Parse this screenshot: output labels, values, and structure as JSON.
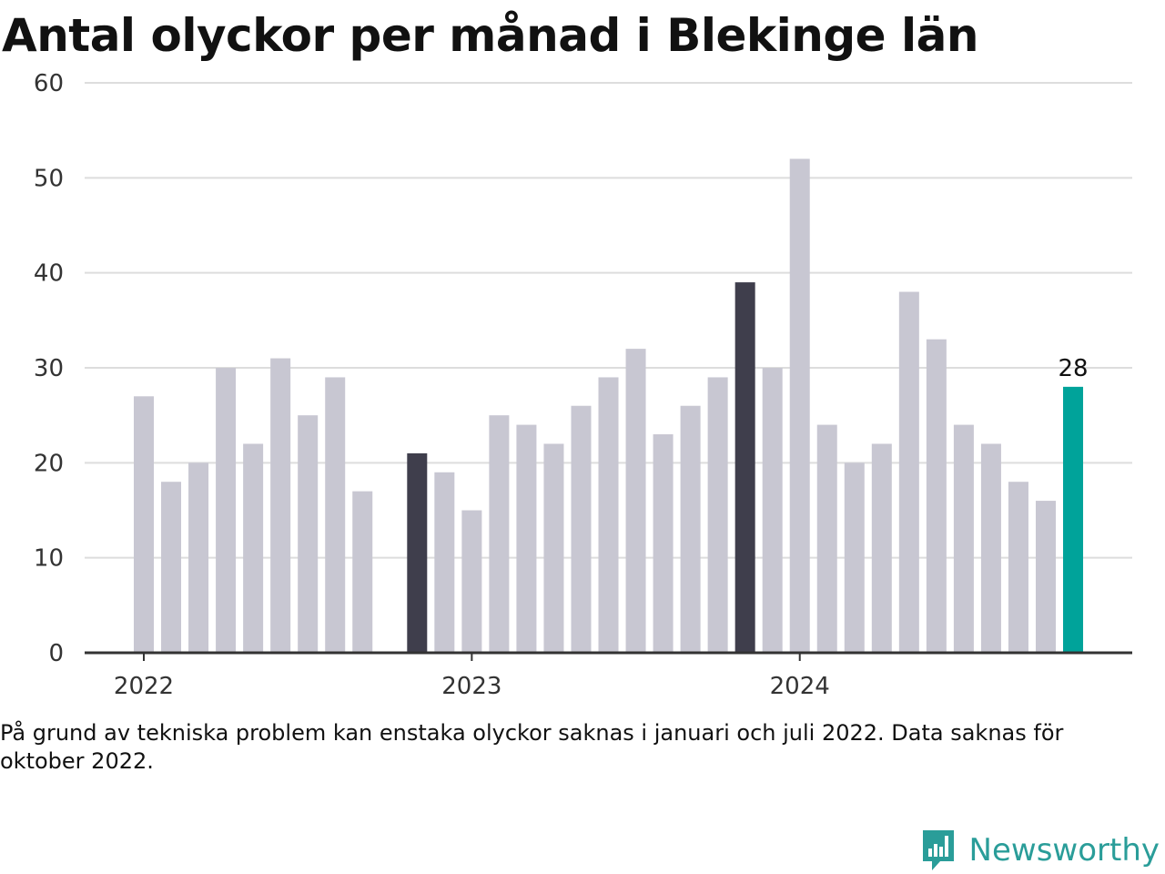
{
  "title": "Antal olyckor per månad i Blekinge län",
  "note": "På grund av tekniska problem kan enstaka olyckor saknas i januari och juli 2022. Data saknas för oktober 2022.",
  "brand": {
    "name": "Newsworthy",
    "icon": "newsworthy-logo-icon"
  },
  "colors": {
    "bar": "#c8c7d2",
    "highlight": "#3f3e4c",
    "latest": "#00a39a",
    "grid": "#dddddd",
    "axis": "#333333",
    "brand": "#2a9d99"
  },
  "chart_data": {
    "type": "bar",
    "title": "Antal olyckor per månad i Blekinge län",
    "xlabel": "",
    "ylabel": "",
    "ylim": [
      0,
      60
    ],
    "yticks": [
      0,
      10,
      20,
      30,
      40,
      50,
      60
    ],
    "x_tick_labels": [
      {
        "label": "2022",
        "month": "2022-01"
      },
      {
        "label": "2023",
        "month": "2023-01"
      },
      {
        "label": "2024",
        "month": "2024-01"
      }
    ],
    "grid": true,
    "months": [
      {
        "month": "2022-01",
        "value": 27
      },
      {
        "month": "2022-02",
        "value": 18
      },
      {
        "month": "2022-03",
        "value": 20
      },
      {
        "month": "2022-04",
        "value": 30
      },
      {
        "month": "2022-05",
        "value": 22
      },
      {
        "month": "2022-06",
        "value": 31
      },
      {
        "month": "2022-07",
        "value": 25
      },
      {
        "month": "2022-08",
        "value": 29
      },
      {
        "month": "2022-09",
        "value": 17
      },
      {
        "month": "2022-10",
        "value": null
      },
      {
        "month": "2022-11",
        "value": 21,
        "highlight": true
      },
      {
        "month": "2022-12",
        "value": 19
      },
      {
        "month": "2023-01",
        "value": 15
      },
      {
        "month": "2023-02",
        "value": 25
      },
      {
        "month": "2023-03",
        "value": 24
      },
      {
        "month": "2023-04",
        "value": 22
      },
      {
        "month": "2023-05",
        "value": 26
      },
      {
        "month": "2023-06",
        "value": 29
      },
      {
        "month": "2023-07",
        "value": 32
      },
      {
        "month": "2023-08",
        "value": 23
      },
      {
        "month": "2023-09",
        "value": 26
      },
      {
        "month": "2023-10",
        "value": 29
      },
      {
        "month": "2023-11",
        "value": 39,
        "highlight": true
      },
      {
        "month": "2023-12",
        "value": 30
      },
      {
        "month": "2024-01",
        "value": 52
      },
      {
        "month": "2024-02",
        "value": 24
      },
      {
        "month": "2024-03",
        "value": 20
      },
      {
        "month": "2024-04",
        "value": 22
      },
      {
        "month": "2024-05",
        "value": 38
      },
      {
        "month": "2024-06",
        "value": 33
      },
      {
        "month": "2024-07",
        "value": 24
      },
      {
        "month": "2024-08",
        "value": 22
      },
      {
        "month": "2024-09",
        "value": 18
      },
      {
        "month": "2024-10",
        "value": 16
      },
      {
        "month": "2024-11",
        "value": 28,
        "latest": true,
        "label": "28"
      }
    ]
  }
}
